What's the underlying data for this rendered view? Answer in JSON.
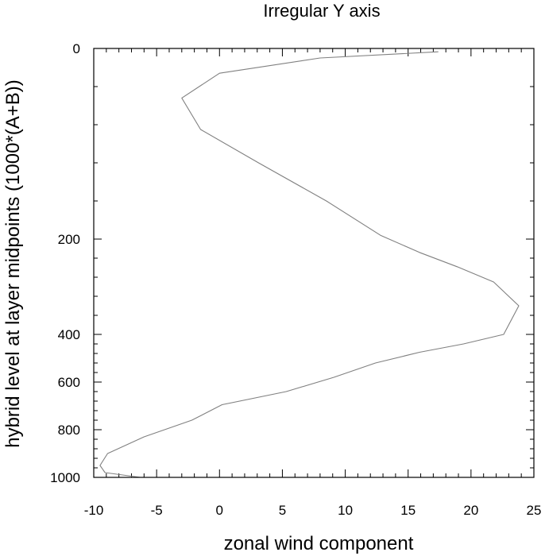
{
  "chart_data": {
    "type": "line",
    "title": "Irregular Y axis",
    "xlabel": "zonal wind component",
    "ylabel": "hybrid level at layer midpoints (1000*(A+B))",
    "xlim": [
      -10,
      25
    ],
    "x_ticks": [
      "-10",
      "-5",
      "0",
      "5",
      "10",
      "15",
      "20",
      "25"
    ],
    "x_tick_values": [
      -10,
      -5,
      0,
      5,
      10,
      15,
      20,
      25
    ],
    "y_ticks": [
      "0",
      "200",
      "400",
      "600",
      "800",
      "1000"
    ],
    "y_tick_values": [
      0,
      200,
      400,
      600,
      800,
      1000
    ],
    "y_scale": "irregular",
    "y_reversed": true,
    "grid": false,
    "line_color": "#808080",
    "series": [
      {
        "x": [
          17.4,
          8.0,
          0.0,
          -3.0,
          -1.5,
          3.1,
          8.5,
          12.8,
          15.9,
          18.9,
          21.8,
          23.8,
          22.6,
          19.4,
          15.9,
          12.4,
          9.1,
          5.3,
          0.2,
          -2.2,
          -6.0,
          -8.9,
          -9.5,
          -9.1,
          -6.3
        ],
        "y": [
          3.5,
          10,
          26,
          52,
          85,
          120,
          160,
          196,
          228,
          258,
          290,
          340,
          400,
          440,
          475,
          520,
          580,
          640,
          695,
          760,
          830,
          900,
          950,
          980,
          1000
        ]
      }
    ]
  }
}
